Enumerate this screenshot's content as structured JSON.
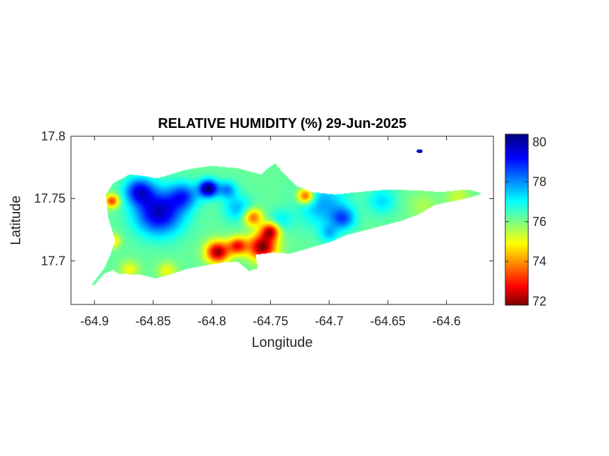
{
  "chart_data": {
    "type": "heatmap",
    "title": "RELATIVE HUMIDITY (%) 29-Jun-2025",
    "xlabel": "Longitude",
    "ylabel": "Latitude",
    "xlim": [
      -64.92,
      -64.56
    ],
    "ylim": [
      17.665,
      17.8
    ],
    "x_ticks": [
      -64.9,
      -64.85,
      -64.8,
      -64.75,
      -64.7,
      -64.65,
      -64.6
    ],
    "x_tick_labels": [
      "-64.9",
      "-64.85",
      "-64.8",
      "-64.75",
      "-64.7",
      "-64.65",
      "-64.6"
    ],
    "y_ticks": [
      17.7,
      17.75,
      17.8
    ],
    "y_tick_labels": [
      "17.7",
      "17.75",
      "17.8"
    ],
    "colorbar": {
      "colormap": "jet",
      "clim": [
        71.8,
        80.4
      ],
      "ticks": [
        72,
        74,
        76,
        78,
        80
      ],
      "tick_labels": [
        "72",
        "74",
        "76",
        "78",
        "80"
      ],
      "colors": [
        "#7f0000",
        "#ff0000",
        "#ffff00",
        "#00ffff",
        "#0000ff",
        "#00007f"
      ]
    },
    "base_value": 76.2,
    "island_outline": [
      [
        -64.9,
        17.681
      ],
      [
        -64.892,
        17.69
      ],
      [
        -64.884,
        17.693
      ],
      [
        -64.88,
        17.69
      ],
      [
        -64.86,
        17.689
      ],
      [
        -64.848,
        17.686
      ],
      [
        -64.84,
        17.688
      ],
      [
        -64.82,
        17.694
      ],
      [
        -64.79,
        17.699
      ],
      [
        -64.777,
        17.699
      ],
      [
        -64.768,
        17.692
      ],
      [
        -64.761,
        17.694
      ],
      [
        -64.763,
        17.705
      ],
      [
        -64.748,
        17.707
      ],
      [
        -64.733,
        17.706
      ],
      [
        -64.715,
        17.711
      ],
      [
        -64.7,
        17.715
      ],
      [
        -64.685,
        17.721
      ],
      [
        -64.66,
        17.727
      ],
      [
        -64.64,
        17.732
      ],
      [
        -64.625,
        17.737
      ],
      [
        -64.61,
        17.745
      ],
      [
        -64.595,
        17.748
      ],
      [
        -64.58,
        17.751
      ],
      [
        -64.57,
        17.754
      ],
      [
        -64.582,
        17.757
      ],
      [
        -64.605,
        17.755
      ],
      [
        -64.62,
        17.756
      ],
      [
        -64.65,
        17.757
      ],
      [
        -64.675,
        17.755
      ],
      [
        -64.695,
        17.753
      ],
      [
        -64.715,
        17.755
      ],
      [
        -64.728,
        17.76
      ],
      [
        -64.74,
        17.771
      ],
      [
        -64.746,
        17.778
      ],
      [
        -64.752,
        17.774
      ],
      [
        -64.758,
        17.769
      ],
      [
        -64.778,
        17.774
      ],
      [
        -64.8,
        17.776
      ],
      [
        -64.822,
        17.773
      ],
      [
        -64.846,
        17.766
      ],
      [
        -64.86,
        17.768
      ],
      [
        -64.87,
        17.769
      ],
      [
        -64.884,
        17.762
      ],
      [
        -64.89,
        17.753
      ],
      [
        -64.888,
        17.735
      ],
      [
        -64.882,
        17.716
      ],
      [
        -64.886,
        17.705
      ],
      [
        -64.892,
        17.693
      ],
      [
        -64.902,
        17.681
      ]
    ],
    "islet": {
      "lon": -64.623,
      "lat": 17.788,
      "value": 79.8
    },
    "anomalies": [
      {
        "lon": -64.845,
        "lat": 17.739,
        "value": 79.8,
        "radius": 0.02
      },
      {
        "lon": -64.862,
        "lat": 17.756,
        "value": 79.0,
        "radius": 0.012
      },
      {
        "lon": -64.803,
        "lat": 17.758,
        "value": 80.4,
        "radius": 0.008
      },
      {
        "lon": -64.824,
        "lat": 17.752,
        "value": 78.4,
        "radius": 0.012
      },
      {
        "lon": -64.787,
        "lat": 17.757,
        "value": 78.0,
        "radius": 0.008
      },
      {
        "lon": -64.778,
        "lat": 17.742,
        "value": 77.6,
        "radius": 0.012
      },
      {
        "lon": -64.705,
        "lat": 17.745,
        "value": 77.8,
        "radius": 0.02
      },
      {
        "lon": -64.688,
        "lat": 17.734,
        "value": 78.2,
        "radius": 0.01
      },
      {
        "lon": -64.655,
        "lat": 17.748,
        "value": 77.3,
        "radius": 0.012
      },
      {
        "lon": -64.742,
        "lat": 17.732,
        "value": 77.2,
        "radius": 0.01
      },
      {
        "lon": -64.7,
        "lat": 17.722,
        "value": 77.4,
        "radius": 0.008
      },
      {
        "lon": -64.885,
        "lat": 17.748,
        "value": 73.2,
        "radius": 0.006
      },
      {
        "lon": -64.884,
        "lat": 17.716,
        "value": 74.5,
        "radius": 0.006
      },
      {
        "lon": -64.87,
        "lat": 17.693,
        "value": 75.0,
        "radius": 0.008
      },
      {
        "lon": -64.838,
        "lat": 17.692,
        "value": 75.0,
        "radius": 0.008
      },
      {
        "lon": -64.795,
        "lat": 17.707,
        "value": 72.0,
        "radius": 0.01
      },
      {
        "lon": -64.778,
        "lat": 17.712,
        "value": 73.0,
        "radius": 0.008
      },
      {
        "lon": -64.757,
        "lat": 17.711,
        "value": 71.8,
        "radius": 0.012
      },
      {
        "lon": -64.75,
        "lat": 17.724,
        "value": 72.6,
        "radius": 0.008
      },
      {
        "lon": -64.765,
        "lat": 17.735,
        "value": 73.5,
        "radius": 0.008
      },
      {
        "lon": -64.72,
        "lat": 17.752,
        "value": 73.0,
        "radius": 0.007
      },
      {
        "lon": -64.62,
        "lat": 17.744,
        "value": 75.6,
        "radius": 0.012
      },
      {
        "lon": -64.59,
        "lat": 17.751,
        "value": 75.3,
        "radius": 0.01
      }
    ]
  }
}
